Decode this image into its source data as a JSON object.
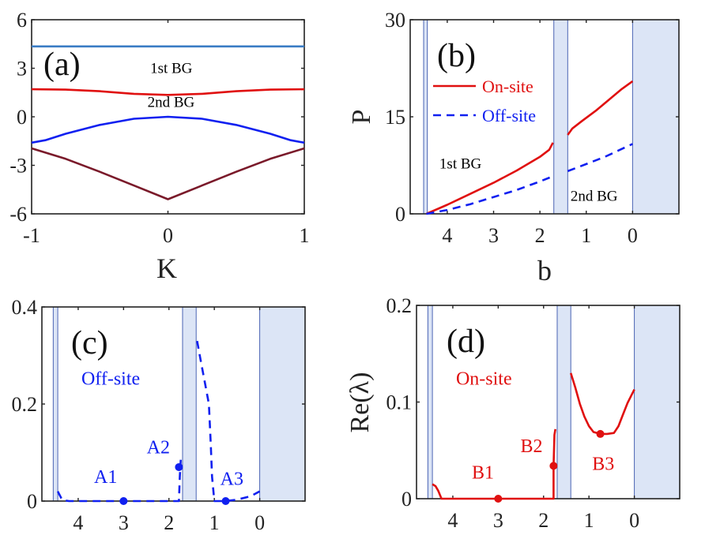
{
  "chart_data": [
    {
      "panel": "(a)",
      "type": "line",
      "xlabel": "K",
      "ylabel": "",
      "xlim": [
        -1,
        1
      ],
      "ylim": [
        -6,
        6
      ],
      "xticks": [
        -1,
        0,
        1
      ],
      "yticks": [
        -6,
        -3,
        0,
        3,
        6
      ],
      "series": [
        {
          "color": "#3a7cc4",
          "linestyle": "solid",
          "x": [
            -1,
            0,
            1
          ],
          "y": [
            4.35,
            4.35,
            4.35
          ]
        },
        {
          "color": "#e01010",
          "linestyle": "solid",
          "x": [
            -1,
            -0.75,
            -0.5,
            -0.25,
            0,
            0.25,
            0.5,
            0.75,
            1
          ],
          "y": [
            1.7,
            1.68,
            1.58,
            1.42,
            1.35,
            1.42,
            1.58,
            1.68,
            1.7
          ]
        },
        {
          "color": "#1020f0",
          "linestyle": "solid",
          "x": [
            -1,
            -0.9,
            -0.75,
            -0.5,
            -0.25,
            0,
            0.25,
            0.5,
            0.75,
            0.9,
            1
          ],
          "y": [
            -1.6,
            -1.45,
            -1.05,
            -0.5,
            -0.12,
            0,
            -0.12,
            -0.5,
            -1.05,
            -1.45,
            -1.6
          ]
        },
        {
          "color": "#7a1a2a",
          "linestyle": "solid",
          "x": [
            -1,
            -0.75,
            -0.5,
            -0.25,
            0,
            0.25,
            0.5,
            0.75,
            1
          ],
          "y": [
            -1.95,
            -2.6,
            -3.4,
            -4.25,
            -5.1,
            -4.25,
            -3.4,
            -2.6,
            -1.95
          ]
        }
      ],
      "annotations": [
        {
          "text": "1st BG",
          "x": -0.13,
          "y": 2.7,
          "color": "#000000"
        },
        {
          "text": "2nd BG",
          "x": -0.15,
          "y": 0.6,
          "color": "#000000"
        }
      ]
    },
    {
      "panel": "(b)",
      "type": "line",
      "xlabel": "b",
      "ylabel": "P",
      "xlim": [
        4.8,
        -1
      ],
      "ylim": [
        0,
        30
      ],
      "xticks": [
        4,
        3,
        2,
        1,
        0
      ],
      "yticks": [
        0,
        15,
        30
      ],
      "bands": [
        [
          4.51,
          4.43
        ],
        [
          1.7,
          1.4
        ],
        [
          0,
          -1
        ]
      ],
      "series": [
        {
          "name": "On-site",
          "color": "#e01010",
          "linestyle": "solid",
          "segments": [
            {
              "x": [
                4.45,
                4.0,
                3.5,
                3.0,
                2.5,
                2.0,
                1.8,
                1.72
              ],
              "y": [
                0,
                1.4,
                3.1,
                4.8,
                6.7,
                8.8,
                9.9,
                11.0
              ]
            },
            {
              "x": [
                1.4,
                1.3,
                1.1,
                0.8,
                0.5,
                0.25,
                0
              ],
              "y": [
                12.2,
                13.2,
                14.3,
                15.9,
                17.7,
                19.2,
                20.5
              ]
            }
          ]
        },
        {
          "name": "Off-site",
          "color": "#1020f0",
          "linestyle": "dashed",
          "segments": [
            {
              "x": [
                4.45,
                4.0,
                3.5,
                3.0,
                2.5,
                2.0,
                1.72
              ],
              "y": [
                0,
                0.6,
                1.5,
                2.6,
                3.7,
                5.0,
                5.8
              ]
            },
            {
              "x": [
                1.4,
                1.0,
                0.6,
                0.3,
                0
              ],
              "y": [
                6.6,
                7.7,
                8.8,
                9.8,
                10.8
              ]
            }
          ]
        }
      ],
      "legend": {
        "position": "upper-left",
        "entries": [
          "On-site",
          "Off-site"
        ]
      },
      "annotations": [
        {
          "text": "1st BG",
          "x": 4.17,
          "y": 7.0,
          "color": "#000000"
        },
        {
          "text": "2nd BG",
          "x": 1.34,
          "y": 2.0,
          "color": "#000000"
        }
      ]
    },
    {
      "panel": "(c)",
      "type": "line",
      "xlabel": "",
      "ylabel": "",
      "xlim": [
        4.8,
        -1
      ],
      "ylim": [
        0,
        0.4
      ],
      "xticks": [
        4,
        3,
        2,
        1,
        0
      ],
      "yticks": [
        0,
        0.2,
        0.4
      ],
      "ytick_labels": [
        "0",
        "0.2",
        "0.4"
      ],
      "bands": [
        [
          4.55,
          4.45
        ],
        [
          1.7,
          1.4
        ],
        [
          0,
          -1
        ]
      ],
      "series": [
        {
          "color": "#1020f0",
          "linestyle": "dashed",
          "segments": [
            {
              "x": [
                4.45,
                4.35,
                4.2,
                3.5,
                3.0,
                2.5,
                2.0,
                1.78,
                1.76,
                1.74
              ],
              "y": [
                0.02,
                0.002,
                0,
                0,
                0,
                0,
                0,
                0,
                0.05,
                0.085
              ]
            },
            {
              "x": [
                1.38,
                1.3,
                1.2,
                1.12,
                1.08,
                1.05,
                1.0,
                0.9,
                0.75,
                0.5,
                0.2,
                0
              ],
              "y": [
                0.33,
                0.29,
                0.24,
                0.2,
                0.12,
                0.05,
                0,
                0,
                0,
                0.003,
                0.01,
                0.02
              ]
            }
          ]
        }
      ],
      "points": [
        {
          "label": "A1",
          "x": 3.0,
          "y": 0,
          "color": "#1020f0"
        },
        {
          "label": "A2",
          "x": 1.78,
          "y": 0.07,
          "color": "#1020f0"
        },
        {
          "label": "A3",
          "x": 0.75,
          "y": 0,
          "color": "#1020f0"
        }
      ],
      "annotations": [
        {
          "text": "Off-site",
          "x": 3.93,
          "y": 0.24,
          "color": "#1020f0"
        },
        {
          "text": "A1",
          "x": 3.65,
          "y": 0.037,
          "color": "#1020f0"
        },
        {
          "text": "A2",
          "x": 2.49,
          "y": 0.098,
          "color": "#1020f0"
        },
        {
          "text": "A3",
          "x": 0.87,
          "y": 0.033,
          "color": "#1020f0"
        }
      ]
    },
    {
      "panel": "(d)",
      "type": "line",
      "xlabel": "",
      "ylabel": "Re(λ)",
      "xlim": [
        4.8,
        -1
      ],
      "ylim": [
        0,
        0.2
      ],
      "xticks": [
        4,
        3,
        2,
        1,
        0
      ],
      "yticks": [
        0,
        0.1,
        0.2
      ],
      "ytick_labels": [
        "0",
        "0.1",
        "0.2"
      ],
      "bands": [
        [
          4.55,
          4.45
        ],
        [
          1.7,
          1.4
        ],
        [
          0,
          -1
        ]
      ],
      "series": [
        {
          "color": "#e01010",
          "linestyle": "solid",
          "segments": [
            {
              "x": [
                4.45,
                4.38,
                4.32,
                4.25,
                3.5,
                3.0,
                2.5,
                2.0,
                1.78,
                1.78,
                1.76,
                1.74
              ],
              "y": [
                0.015,
                0.013,
                0.008,
                0,
                0,
                0,
                0,
                0,
                0,
                0.034,
                0.066,
                0.072
              ]
            },
            {
              "x": [
                1.4,
                1.3,
                1.2,
                1.1,
                1.0,
                0.9,
                0.75,
                0.6,
                0.45,
                0.35,
                0.25,
                0.15,
                0
              ],
              "y": [
                0.13,
                0.115,
                0.098,
                0.085,
                0.075,
                0.069,
                0.067,
                0.067,
                0.068,
                0.075,
                0.087,
                0.099,
                0.113
              ]
            }
          ]
        }
      ],
      "points": [
        {
          "label": "B1",
          "x": 3.0,
          "y": 0,
          "color": "#e01010"
        },
        {
          "label": "B2",
          "x": 1.78,
          "y": 0.034,
          "color": "#e01010"
        },
        {
          "label": "B3",
          "x": 0.75,
          "y": 0.067,
          "color": "#e01010"
        }
      ],
      "annotations": [
        {
          "text": "On-site",
          "x": 3.93,
          "y": 0.118,
          "color": "#e01010"
        },
        {
          "text": "B1",
          "x": 3.58,
          "y": 0.021,
          "color": "#e01010"
        },
        {
          "text": "B2",
          "x": 2.51,
          "y": 0.048,
          "color": "#e01010"
        },
        {
          "text": "B3",
          "x": 0.93,
          "y": 0.03,
          "color": "#e01010"
        }
      ]
    }
  ],
  "colors": {
    "band_fill": "#dce5f6",
    "band_edge": "#4a64b4",
    "axis": "#222222"
  }
}
